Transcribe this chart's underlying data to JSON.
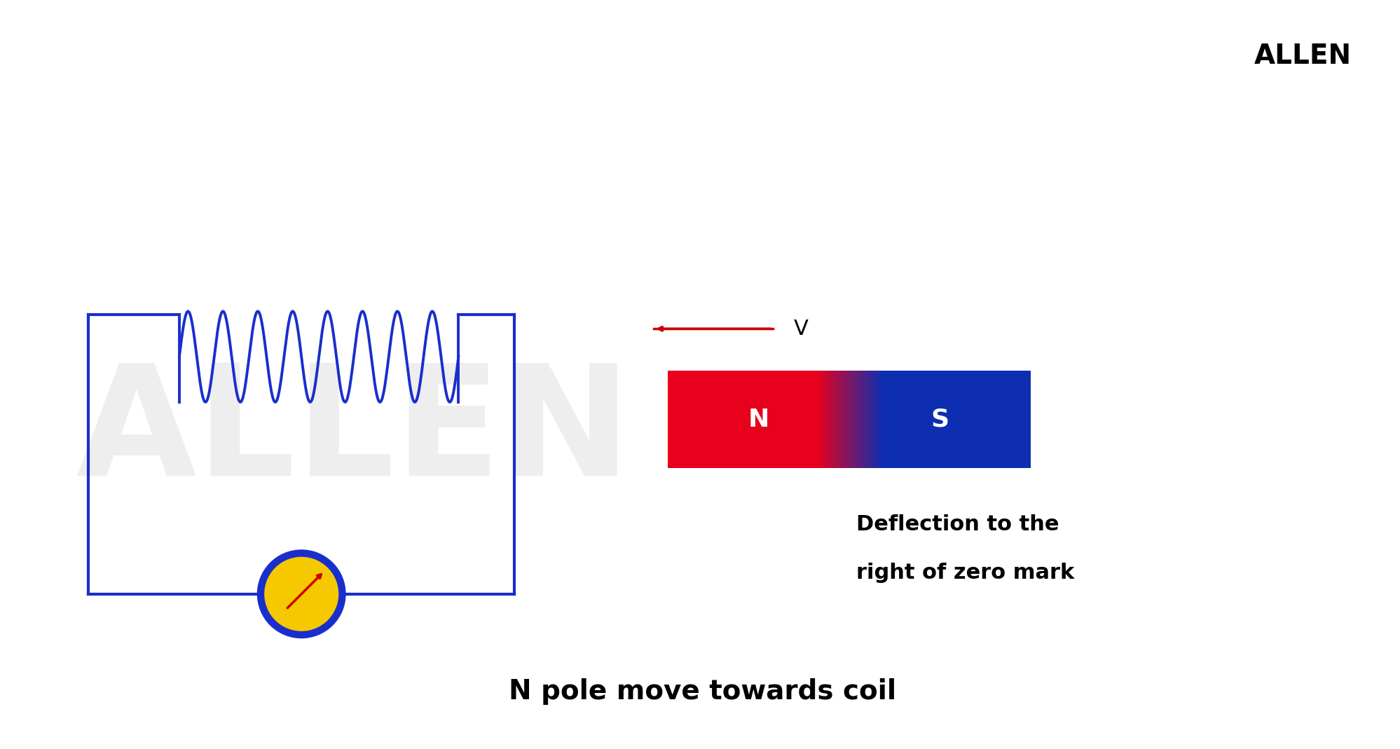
{
  "bg_color": "#ffffff",
  "circuit_color": "#1a2ecc",
  "circuit_lw": 3.0,
  "coil_color": "#1a2ecc",
  "coil_lw": 2.8,
  "magnet_red": "#e8001c",
  "magnet_blue": "#0d2eb0",
  "magnet_mid": "#6b0a1a",
  "galv_color_outer": "#1a2ecc",
  "galv_color_fill": "#f5c800",
  "arrow_color": "#cc0000",
  "watermark_color": "#e0e0e0",
  "title": "N pole move towards coil",
  "deflection_text_line1": "Deflection to the",
  "deflection_text_line2": "right of zero mark",
  "velocity_label": "V",
  "north_label": "N",
  "south_label": "S",
  "allen_label": "ALLEN",
  "title_fontsize": 28,
  "deflection_fontsize": 22,
  "magnet_label_fontsize": 26,
  "velocity_fontsize": 22,
  "allen_fontsize": 28
}
